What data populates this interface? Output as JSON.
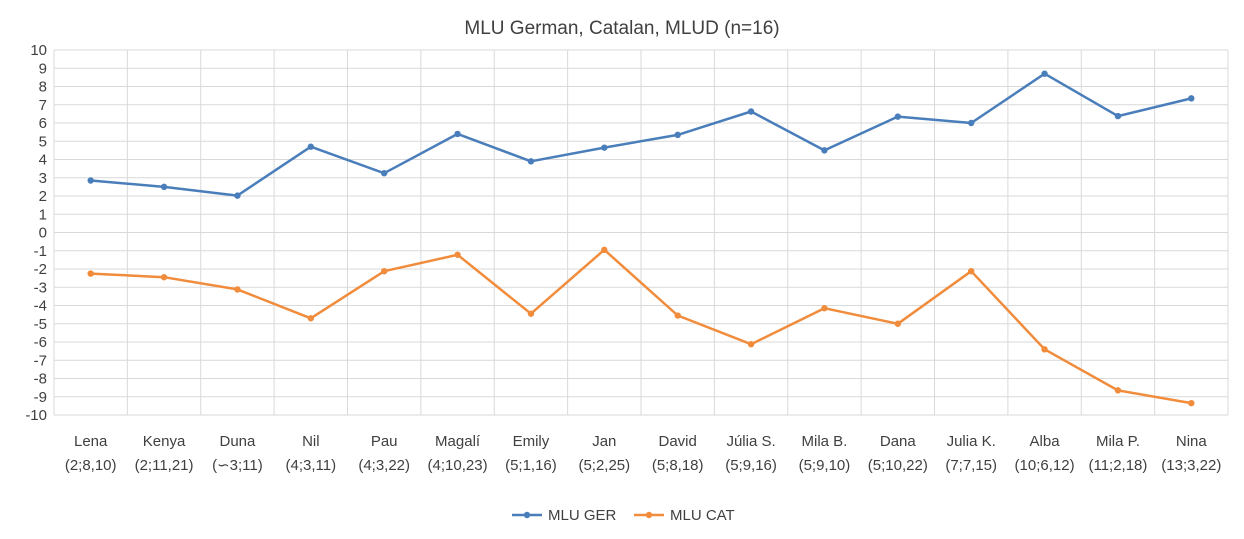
{
  "chart_data": {
    "type": "line",
    "title": "MLU German, Catalan, MLUD (n=16)",
    "xlabel": "",
    "ylabel": "",
    "ylim": [
      -10,
      10
    ],
    "yticks": [
      10,
      9,
      8,
      7,
      6,
      5,
      4,
      3,
      2,
      1,
      0,
      -1,
      -2,
      -3,
      -4,
      -5,
      -6,
      -7,
      -8,
      -9,
      -10
    ],
    "categories": [
      {
        "name": "Lena",
        "age": "(2;8,10)"
      },
      {
        "name": "Kenya",
        "age": "(2;11,21)"
      },
      {
        "name": "Duna",
        "age": "(∽3;11)"
      },
      {
        "name": "Nil",
        "age": "(4;3,11)"
      },
      {
        "name": "Pau",
        "age": "(4;3,22)"
      },
      {
        "name": "Magalí",
        "age": "(4;10,23)"
      },
      {
        "name": "Emily",
        "age": "(5;1,16)"
      },
      {
        "name": "Jan",
        "age": "(5;2,25)"
      },
      {
        "name": "David",
        "age": "(5;8,18)"
      },
      {
        "name": "Júlia S.",
        "age": "(5;9,16)"
      },
      {
        "name": "Mila B.",
        "age": "(5;9,10)"
      },
      {
        "name": "Dana",
        "age": "(5;10,22)"
      },
      {
        "name": "Julia K.",
        "age": "(7;7,15)"
      },
      {
        "name": "Alba",
        "age": "(10;6,12)"
      },
      {
        "name": "Mila P.",
        "age": "(11;2,18)"
      },
      {
        "name": "Nina",
        "age": "(13;3,22)"
      }
    ],
    "series": [
      {
        "name": "MLU GER",
        "color": "#4a7ebb",
        "values": [
          2.85,
          2.5,
          2.02,
          4.7,
          3.25,
          5.4,
          3.9,
          4.65,
          5.35,
          6.63,
          4.5,
          6.35,
          6.0,
          8.7,
          6.38,
          7.35
        ]
      },
      {
        "name": "MLU CAT",
        "color": "#f08c3c",
        "values": [
          -2.25,
          -2.45,
          -3.12,
          -4.7,
          -2.12,
          -1.22,
          -4.45,
          -0.95,
          -4.55,
          -6.12,
          -4.15,
          -5.0,
          -2.12,
          -6.4,
          -8.65,
          -9.35
        ]
      }
    ],
    "grid": true,
    "legend_position": "bottom"
  }
}
